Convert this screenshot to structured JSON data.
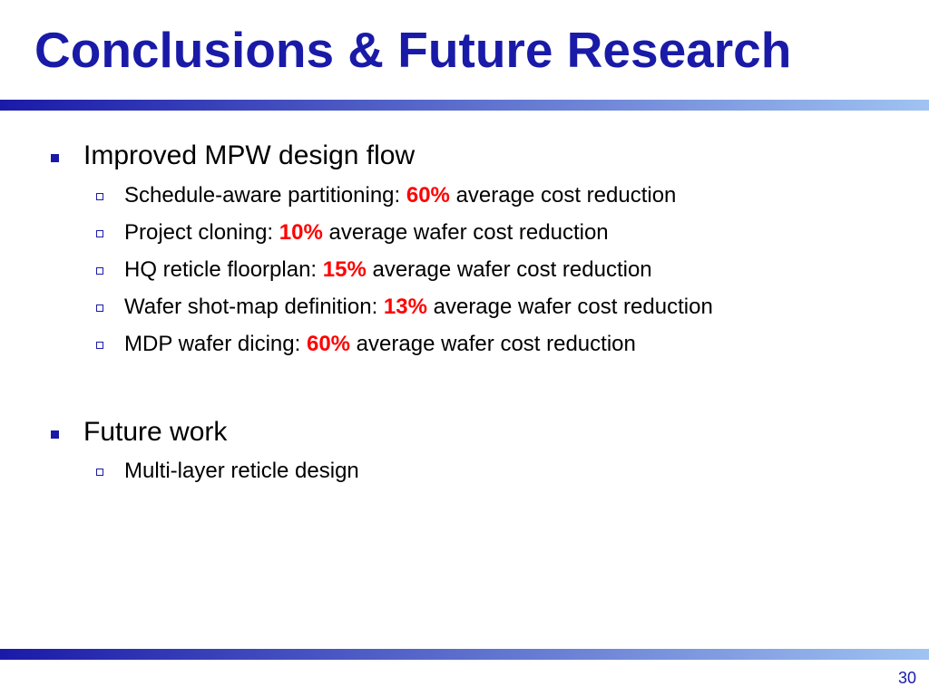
{
  "slide": {
    "title": "Conclusions & Future Research",
    "page_number": "30"
  },
  "colors": {
    "title": "#1a1aa8",
    "highlight": "#ff0000",
    "rule_start": "#1a1aa8",
    "rule_end": "#9fc3f2"
  },
  "sections": [
    {
      "label": "Improved MPW design flow",
      "items": [
        {
          "prefix": "Schedule-aware partitioning: ",
          "value": "60%",
          "suffix": " average cost reduction"
        },
        {
          "prefix": "Project cloning: ",
          "value": "10%",
          "suffix": " average wafer cost reduction"
        },
        {
          "prefix": "HQ reticle floorplan: ",
          "value": "15%",
          "suffix": " average wafer cost reduction"
        },
        {
          "prefix": "Wafer shot-map definition: ",
          "value": "13%",
          "suffix": " average wafer cost reduction"
        },
        {
          "prefix": "MDP wafer dicing: ",
          "value": "60%",
          "suffix": " average wafer cost reduction"
        }
      ]
    },
    {
      "label": "Future work",
      "items": [
        {
          "prefix": "Multi-layer reticle design",
          "value": "",
          "suffix": ""
        }
      ]
    }
  ]
}
